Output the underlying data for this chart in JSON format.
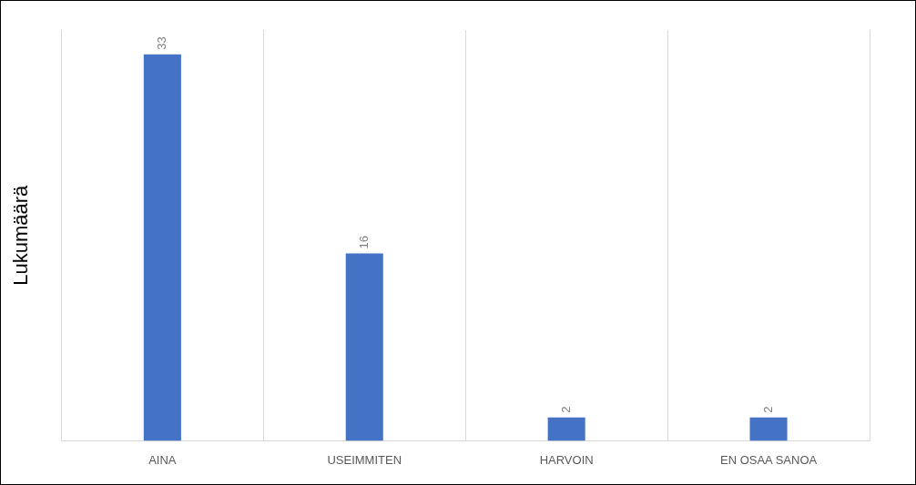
{
  "chart_data": {
    "type": "bar",
    "ylabel": "Lukumäärä",
    "categories": [
      "AINA",
      "USEIMMITEN",
      "HARVOIN",
      "EN OSAA SANOA"
    ],
    "values": [
      33,
      16,
      2,
      2
    ],
    "color": "#4472c4",
    "data_labels": true,
    "grid": "x",
    "legend": false,
    "tick_labels": "x"
  }
}
